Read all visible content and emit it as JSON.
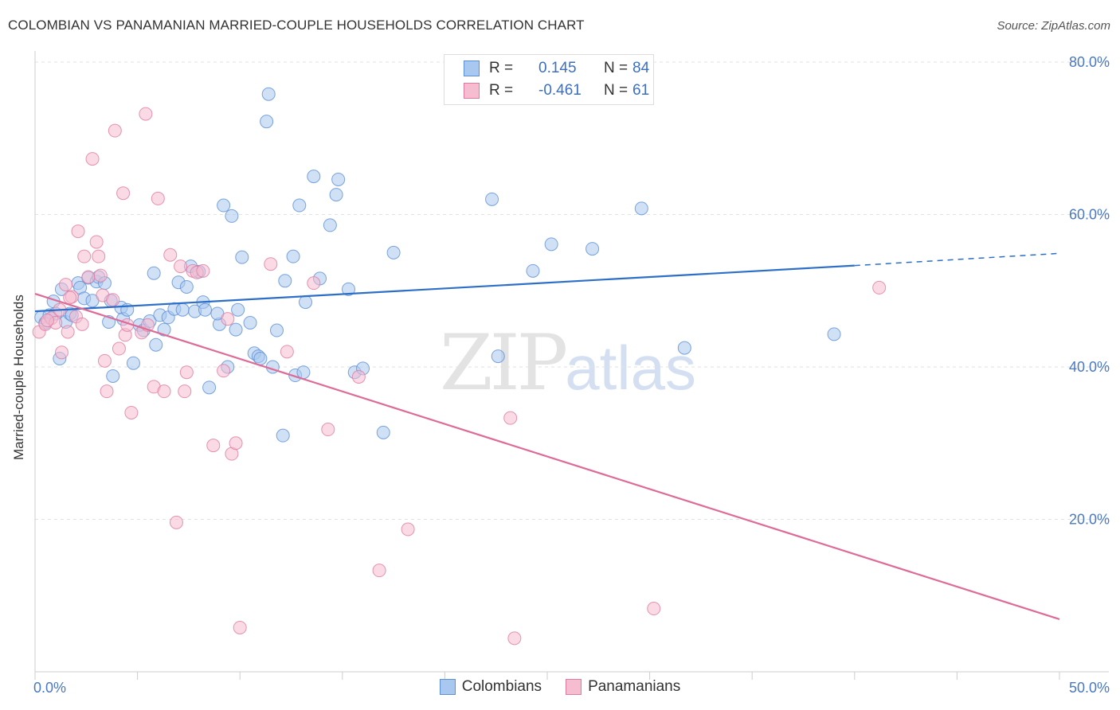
{
  "title": "COLOMBIAN VS PANAMANIAN MARRIED-COUPLE HOUSEHOLDS CORRELATION CHART",
  "source": "Source: ZipAtlas.com",
  "watermark": {
    "zip": "ZIP",
    "atlas": "atlas"
  },
  "legend_top": {
    "rows": [
      {
        "label": "R =",
        "r": "0.145",
        "n_label": "N =",
        "n": "84",
        "color": "#a9c8ef",
        "stroke": "#5b8fd6"
      },
      {
        "label": "R =",
        "r": "-0.461",
        "n_label": "N =",
        "n": "61",
        "color": "#f6bcd0",
        "stroke": "#e07aa0"
      }
    ]
  },
  "legend_bottom": [
    {
      "label": "Colombians",
      "color": "#a9c8ef",
      "stroke": "#5b8fd6"
    },
    {
      "label": "Panamanians",
      "color": "#f6bcd0",
      "stroke": "#e07aa0"
    }
  ],
  "chart_data": {
    "type": "scatter",
    "title": "COLOMBIAN VS PANAMANIAN MARRIED-COUPLE HOUSEHOLDS CORRELATION CHART",
    "xlabel": "",
    "ylabel": "Married-couple Households",
    "xlim": [
      0,
      50
    ],
    "ylim": [
      0,
      82
    ],
    "x_tick_labels": [
      {
        "value": 0,
        "label": "0.0%"
      },
      {
        "value": 50,
        "label": "50.0%"
      }
    ],
    "y_ticks": [
      {
        "value": 20,
        "label": "20.0%"
      },
      {
        "value": 40,
        "label": "40.0%"
      },
      {
        "value": 60,
        "label": "60.0%"
      },
      {
        "value": 80,
        "label": "80.0%"
      }
    ],
    "grid": "horizontal dashed",
    "legend": "top-center",
    "series": [
      {
        "name": "Colombians",
        "color": "#5b8fd6",
        "fill": "#a9c8ef",
        "trend": {
          "x0": 0,
          "y0": 47.3,
          "x1": 40,
          "y1": 53.3,
          "dashed_to_x": 50,
          "dashed_to_y": 54.9
        },
        "points": [
          [
            0.3,
            46.5
          ],
          [
            0.5,
            45.8
          ],
          [
            0.7,
            46.8
          ],
          [
            0.9,
            48.6
          ],
          [
            1.0,
            47.0
          ],
          [
            1.2,
            41.1
          ],
          [
            1.3,
            50.2
          ],
          [
            1.5,
            45.9
          ],
          [
            1.7,
            47.0
          ],
          [
            1.8,
            46.8
          ],
          [
            2.1,
            51.0
          ],
          [
            2.2,
            50.4
          ],
          [
            2.4,
            49.0
          ],
          [
            2.6,
            51.7
          ],
          [
            2.8,
            48.7
          ],
          [
            3.0,
            51.2
          ],
          [
            3.1,
            51.8
          ],
          [
            3.4,
            51.0
          ],
          [
            3.6,
            45.9
          ],
          [
            3.7,
            48.7
          ],
          [
            4.2,
            47.8
          ],
          [
            4.3,
            46.3
          ],
          [
            4.5,
            47.5
          ],
          [
            4.8,
            40.5
          ],
          [
            5.1,
            45.5
          ],
          [
            5.3,
            44.8
          ],
          [
            5.6,
            46.0
          ],
          [
            5.8,
            52.3
          ],
          [
            5.9,
            42.9
          ],
          [
            6.1,
            46.8
          ],
          [
            6.3,
            44.9
          ],
          [
            6.5,
            46.5
          ],
          [
            6.8,
            47.6
          ],
          [
            7.0,
            51.1
          ],
          [
            7.2,
            47.5
          ],
          [
            7.4,
            50.5
          ],
          [
            7.6,
            53.2
          ],
          [
            7.8,
            47.3
          ],
          [
            8.0,
            52.5
          ],
          [
            8.2,
            48.5
          ],
          [
            8.3,
            47.5
          ],
          [
            8.5,
            37.3
          ],
          [
            9.0,
            45.6
          ],
          [
            9.2,
            61.2
          ],
          [
            9.4,
            40.0
          ],
          [
            9.6,
            59.8
          ],
          [
            9.8,
            44.9
          ],
          [
            9.9,
            47.5
          ],
          [
            10.1,
            54.4
          ],
          [
            10.5,
            45.8
          ],
          [
            10.7,
            41.8
          ],
          [
            10.9,
            41.4
          ],
          [
            11.0,
            41.1
          ],
          [
            11.3,
            72.2
          ],
          [
            11.4,
            75.8
          ],
          [
            11.6,
            40.0
          ],
          [
            11.8,
            44.8
          ],
          [
            12.2,
            51.3
          ],
          [
            12.6,
            54.5
          ],
          [
            12.7,
            38.9
          ],
          [
            12.9,
            61.2
          ],
          [
            13.1,
            39.3
          ],
          [
            13.2,
            48.5
          ],
          [
            13.6,
            65.0
          ],
          [
            13.9,
            51.6
          ],
          [
            14.4,
            58.6
          ],
          [
            14.7,
            62.6
          ],
          [
            14.8,
            64.6
          ],
          [
            15.3,
            50.2
          ],
          [
            15.6,
            39.3
          ],
          [
            16.0,
            39.8
          ],
          [
            17.0,
            31.4
          ],
          [
            17.5,
            55.0
          ],
          [
            3.8,
            38.8
          ],
          [
            8.9,
            47.0
          ],
          [
            12.1,
            31.0
          ],
          [
            22.3,
            62.0
          ],
          [
            22.6,
            41.4
          ],
          [
            24.3,
            52.6
          ],
          [
            25.2,
            56.1
          ],
          [
            27.2,
            55.5
          ],
          [
            29.6,
            60.8
          ],
          [
            31.7,
            42.5
          ],
          [
            39.0,
            44.3
          ]
        ]
      },
      {
        "name": "Panamanians",
        "color": "#e07aa0",
        "fill": "#f6bcd0",
        "trend": {
          "x0": 0,
          "y0": 49.6,
          "x1": 50,
          "y1": 6.9
        },
        "points": [
          [
            0.2,
            44.6
          ],
          [
            0.5,
            45.6
          ],
          [
            0.8,
            46.4
          ],
          [
            1.0,
            45.8
          ],
          [
            1.2,
            47.5
          ],
          [
            1.3,
            41.9
          ],
          [
            1.5,
            50.8
          ],
          [
            1.6,
            44.6
          ],
          [
            1.8,
            49.2
          ],
          [
            2.0,
            46.6
          ],
          [
            2.1,
            57.8
          ],
          [
            2.3,
            45.6
          ],
          [
            2.4,
            54.5
          ],
          [
            2.6,
            51.8
          ],
          [
            2.8,
            67.3
          ],
          [
            3.0,
            56.4
          ],
          [
            3.1,
            54.5
          ],
          [
            3.3,
            49.4
          ],
          [
            3.4,
            40.8
          ],
          [
            3.5,
            36.8
          ],
          [
            3.8,
            48.8
          ],
          [
            3.9,
            71.0
          ],
          [
            4.1,
            42.4
          ],
          [
            4.3,
            62.8
          ],
          [
            4.4,
            44.2
          ],
          [
            4.5,
            45.5
          ],
          [
            4.7,
            34.0
          ],
          [
            5.2,
            44.5
          ],
          [
            5.4,
            73.2
          ],
          [
            5.8,
            37.4
          ],
          [
            6.0,
            62.1
          ],
          [
            6.3,
            36.8
          ],
          [
            6.6,
            54.7
          ],
          [
            6.9,
            19.6
          ],
          [
            7.1,
            53.2
          ],
          [
            7.3,
            36.8
          ],
          [
            7.4,
            39.3
          ],
          [
            7.7,
            52.6
          ],
          [
            7.9,
            52.4
          ],
          [
            8.2,
            52.6
          ],
          [
            8.7,
            29.7
          ],
          [
            9.2,
            39.5
          ],
          [
            9.4,
            46.3
          ],
          [
            9.6,
            28.6
          ],
          [
            9.8,
            30.0
          ],
          [
            10.0,
            5.8
          ],
          [
            11.5,
            53.5
          ],
          [
            12.3,
            42.0
          ],
          [
            13.6,
            51.0
          ],
          [
            14.3,
            31.8
          ],
          [
            15.8,
            38.7
          ],
          [
            16.8,
            13.3
          ],
          [
            18.2,
            18.7
          ],
          [
            23.4,
            4.4
          ],
          [
            23.2,
            33.3
          ],
          [
            30.2,
            8.3
          ],
          [
            41.2,
            50.4
          ],
          [
            5.5,
            45.5
          ],
          [
            1.7,
            49.1
          ],
          [
            0.6,
            46.1
          ],
          [
            3.2,
            52.0
          ]
        ]
      }
    ]
  }
}
